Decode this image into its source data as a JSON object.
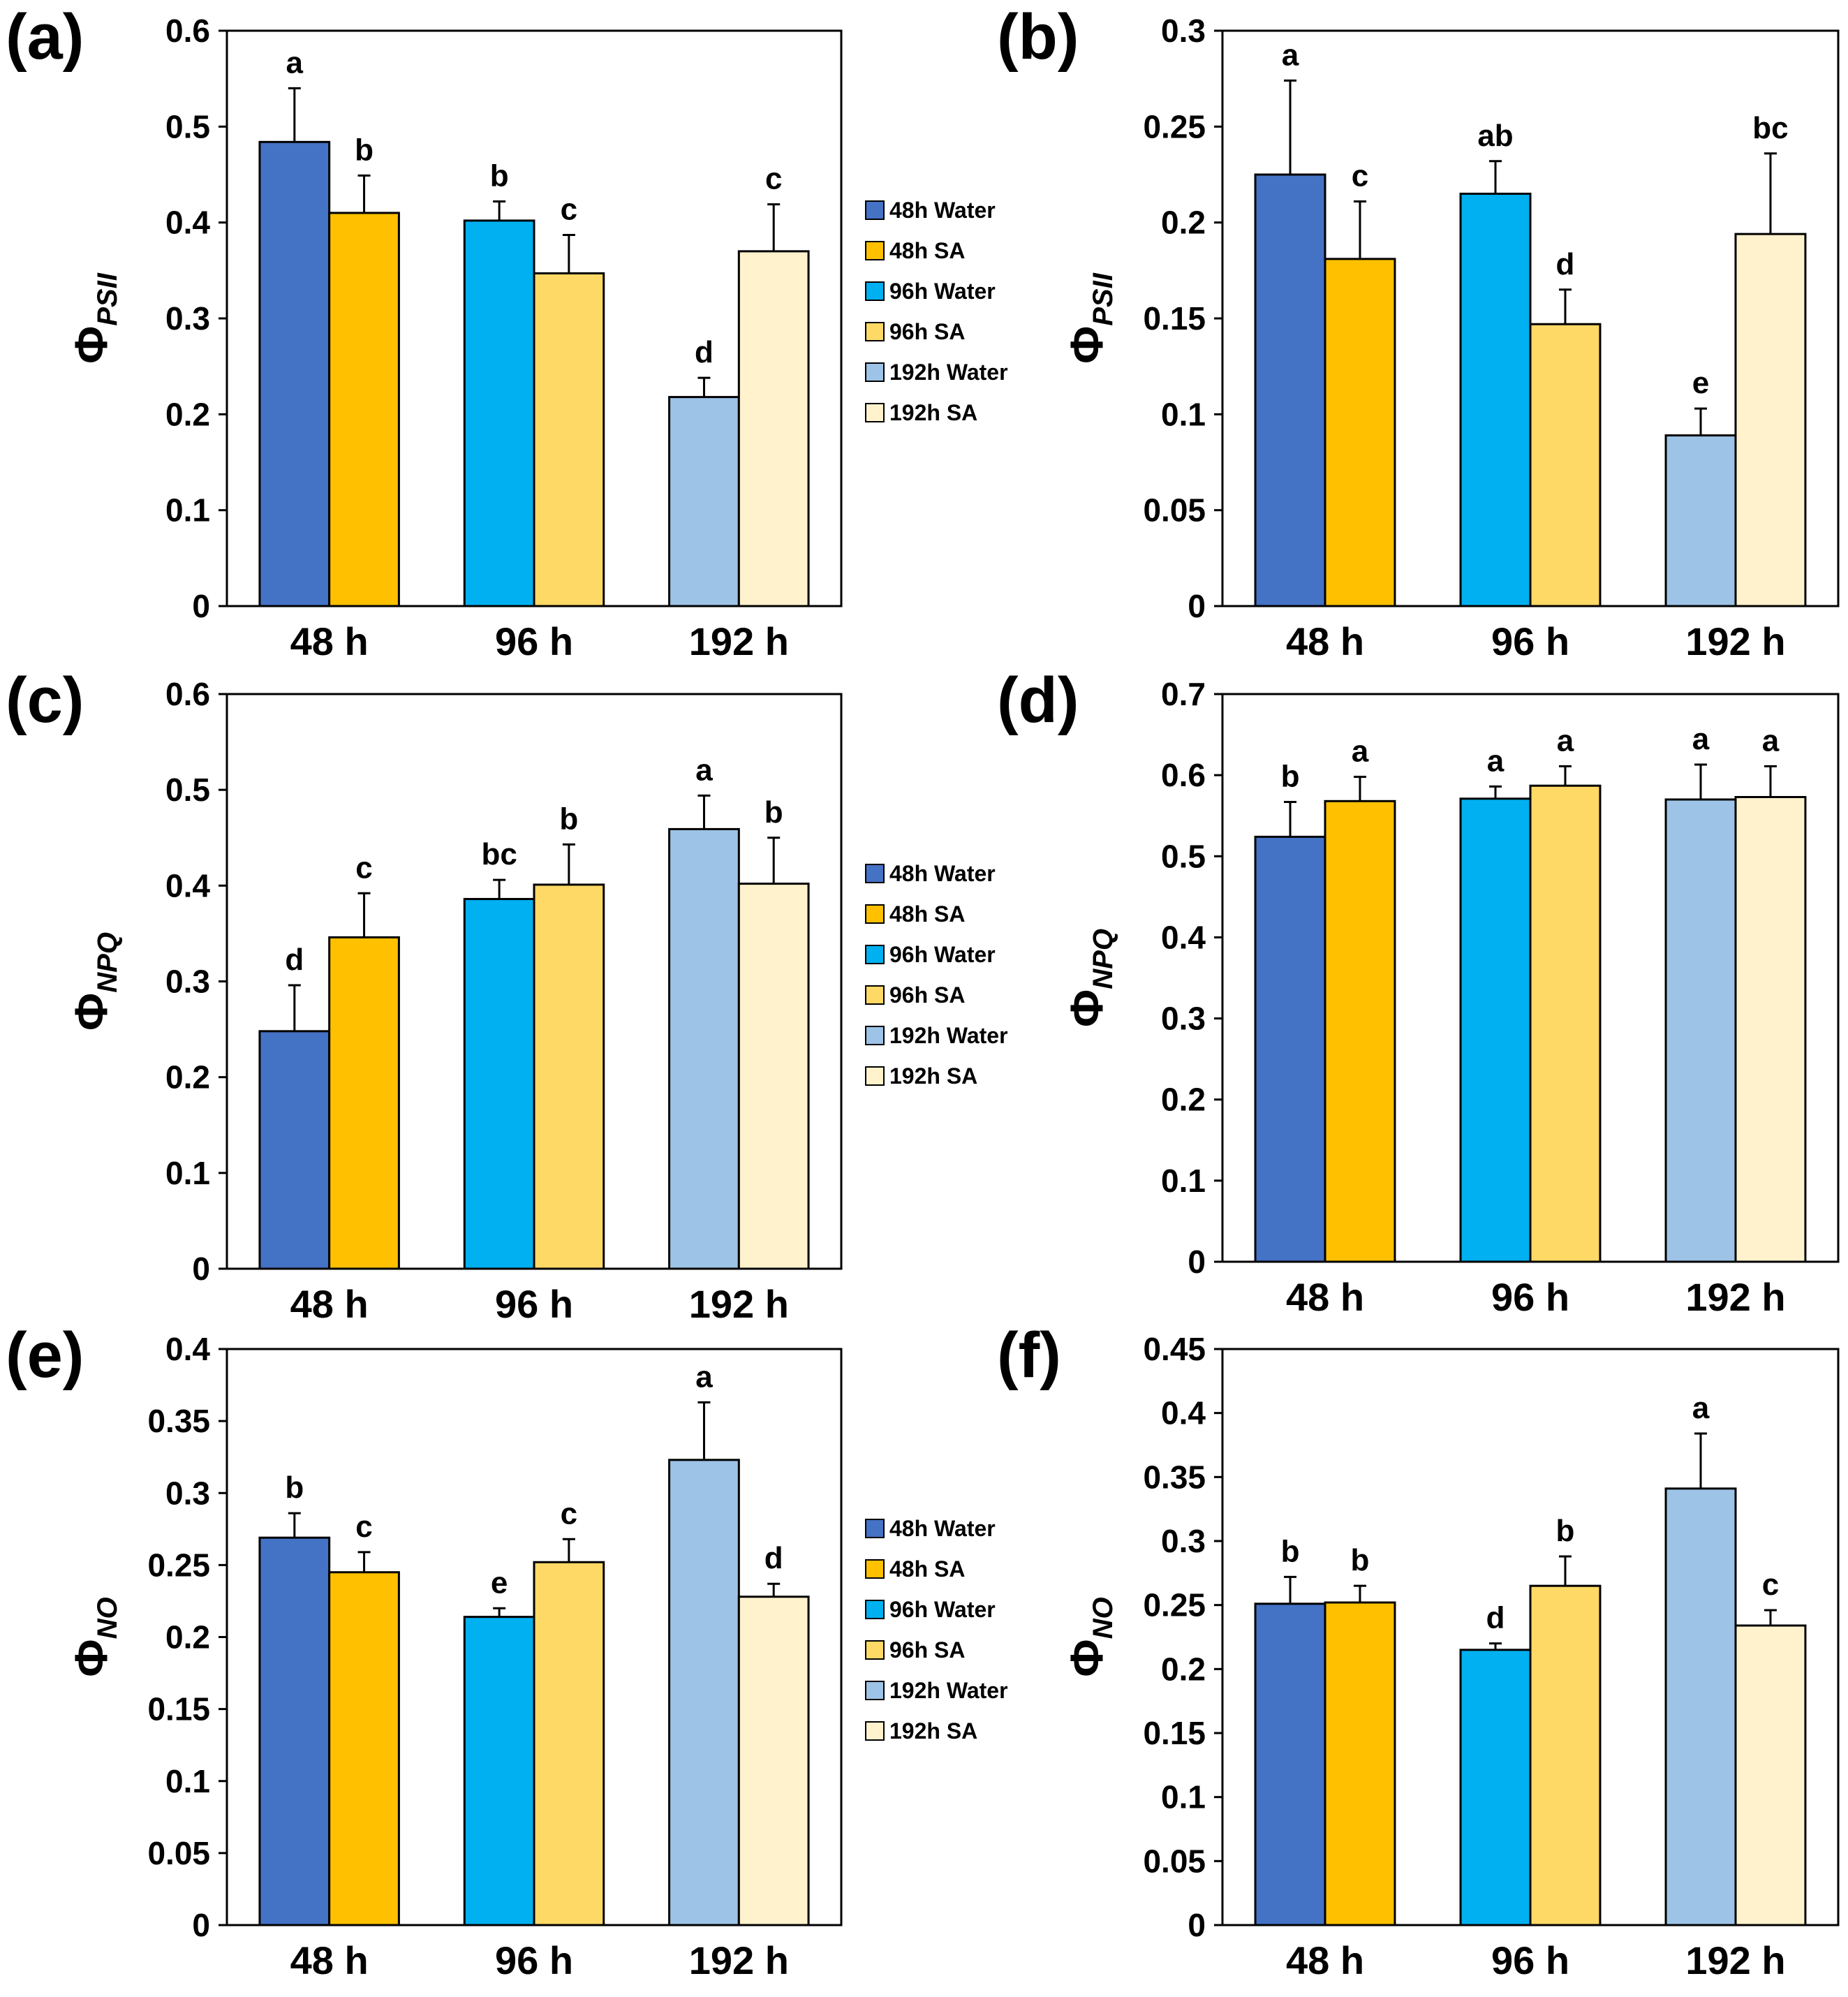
{
  "figure": {
    "group_labels": [
      "48 h",
      "96 h",
      "192 h"
    ],
    "legend_entries": [
      "48h Water",
      "48h SA",
      "96h Water",
      "96h SA",
      "192h Water",
      "192h SA"
    ],
    "series_colors": [
      "#4472C4",
      "#FFC000",
      "#00B0F0",
      "#FFD966",
      "#9DC3E6",
      "#FFF2CC"
    ]
  },
  "chart_data": [
    {
      "panel": "(a)",
      "type": "bar",
      "ylabel_symbol": "Φ",
      "ylabel_subscript": "PSII",
      "ylim": [
        0,
        0.6
      ],
      "yticks": [
        0,
        0.1,
        0.2,
        0.3,
        0.4,
        0.5,
        0.6
      ],
      "ytick_labels": [
        "0",
        "0.1",
        "0.2",
        "0.3",
        "0.4",
        "0.5",
        "0.6"
      ],
      "categories": [
        "48 h",
        "96 h",
        "192 h"
      ],
      "series": [
        {
          "name": "Water",
          "values": [
            0.484,
            0.402,
            0.218
          ],
          "errors": [
            0.056,
            0.02,
            0.02
          ],
          "letters": [
            "a",
            "b",
            "d"
          ]
        },
        {
          "name": "SA",
          "values": [
            0.41,
            0.347,
            0.37
          ],
          "errors": [
            0.039,
            0.04,
            0.049
          ],
          "letters": [
            "b",
            "c",
            "c"
          ]
        }
      ],
      "legend": true
    },
    {
      "panel": "(b)",
      "type": "bar",
      "ylabel_symbol": "Φ",
      "ylabel_subscript": "PSII",
      "ylim": [
        0,
        0.3
      ],
      "yticks": [
        0,
        0.05,
        0.1,
        0.15,
        0.2,
        0.25,
        0.3
      ],
      "ytick_labels": [
        "0",
        "0.05",
        "0.1",
        "0.15",
        "0.2",
        "0.25",
        "0.3"
      ],
      "categories": [
        "48 h",
        "96 h",
        "192 h"
      ],
      "series": [
        {
          "name": "Water",
          "values": [
            0.225,
            0.215,
            0.089
          ],
          "errors": [
            0.049,
            0.017,
            0.014
          ],
          "letters": [
            "a",
            "ab",
            "e"
          ]
        },
        {
          "name": "SA",
          "values": [
            0.181,
            0.147,
            0.194
          ],
          "errors": [
            0.03,
            0.018,
            0.042
          ],
          "letters": [
            "c",
            "d",
            "bc"
          ]
        }
      ],
      "legend": false
    },
    {
      "panel": "(c)",
      "type": "bar",
      "ylabel_symbol": "Φ",
      "ylabel_subscript": "NPQ",
      "ylim": [
        0,
        0.6
      ],
      "yticks": [
        0,
        0.1,
        0.2,
        0.3,
        0.4,
        0.5,
        0.6
      ],
      "ytick_labels": [
        "0",
        "0.1",
        "0.2",
        "0.3",
        "0.4",
        "0.5",
        "0.6"
      ],
      "categories": [
        "48 h",
        "96 h",
        "192 h"
      ],
      "series": [
        {
          "name": "Water",
          "values": [
            0.248,
            0.386,
            0.459
          ],
          "errors": [
            0.048,
            0.02,
            0.035
          ],
          "letters": [
            "d",
            "bc",
            "a"
          ]
        },
        {
          "name": "SA",
          "values": [
            0.346,
            0.401,
            0.402
          ],
          "errors": [
            0.046,
            0.042,
            0.048
          ],
          "letters": [
            "c",
            "b",
            "b"
          ]
        }
      ],
      "legend": true
    },
    {
      "panel": "(d)",
      "type": "bar",
      "ylabel_symbol": "Φ",
      "ylabel_subscript": "NPQ",
      "ylim": [
        0,
        0.7
      ],
      "yticks": [
        0,
        0.1,
        0.2,
        0.3,
        0.4,
        0.5,
        0.6,
        0.7
      ],
      "ytick_labels": [
        "0",
        "0.1",
        "0.2",
        "0.3",
        "0.4",
        "0.5",
        "0.6",
        "0.7"
      ],
      "categories": [
        "48 h",
        "96 h",
        "192 h"
      ],
      "series": [
        {
          "name": "Water",
          "values": [
            0.524,
            0.571,
            0.57
          ],
          "errors": [
            0.043,
            0.015,
            0.043
          ],
          "letters": [
            "b",
            "a",
            "a"
          ]
        },
        {
          "name": "SA",
          "values": [
            0.568,
            0.587,
            0.573
          ],
          "errors": [
            0.03,
            0.024,
            0.038
          ],
          "letters": [
            "a",
            "a",
            "a"
          ]
        }
      ],
      "legend": false
    },
    {
      "panel": "(e)",
      "type": "bar",
      "ylabel_symbol": "Φ",
      "ylabel_subscript": "NO",
      "ylim": [
        0,
        0.4
      ],
      "yticks": [
        0,
        0.05,
        0.1,
        0.15,
        0.2,
        0.25,
        0.3,
        0.35,
        0.4
      ],
      "ytick_labels": [
        "0",
        "0.05",
        "0.1",
        "0.15",
        "0.2",
        "0.25",
        "0.3",
        "0.35",
        "0.4"
      ],
      "categories": [
        "48 h",
        "96 h",
        "192 h"
      ],
      "series": [
        {
          "name": "Water",
          "values": [
            0.269,
            0.214,
            0.323
          ],
          "errors": [
            0.017,
            0.006,
            0.04
          ],
          "letters": [
            "b",
            "e",
            "a"
          ]
        },
        {
          "name": "SA",
          "values": [
            0.245,
            0.252,
            0.228
          ],
          "errors": [
            0.014,
            0.016,
            0.009
          ],
          "letters": [
            "c",
            "c",
            "d"
          ]
        }
      ],
      "legend": true
    },
    {
      "panel": "(f)",
      "type": "bar",
      "ylabel_symbol": "Φ",
      "ylabel_subscript": "NO",
      "ylim": [
        0,
        0.45
      ],
      "yticks": [
        0,
        0.05,
        0.1,
        0.15,
        0.2,
        0.25,
        0.3,
        0.35,
        0.4,
        0.45
      ],
      "ytick_labels": [
        "0",
        "0.05",
        "0.1",
        "0.15",
        "0.2",
        "0.25",
        "0.3",
        "0.35",
        "0.4",
        "0.45"
      ],
      "categories": [
        "48 h",
        "96 h",
        "192 h"
      ],
      "series": [
        {
          "name": "Water",
          "values": [
            0.251,
            0.215,
            0.341
          ],
          "errors": [
            0.021,
            0.005,
            0.043
          ],
          "letters": [
            "b",
            "d",
            "a"
          ]
        },
        {
          "name": "SA",
          "values": [
            0.252,
            0.265,
            0.234
          ],
          "errors": [
            0.013,
            0.023,
            0.012
          ],
          "letters": [
            "b",
            "b",
            "c"
          ]
        }
      ],
      "legend": false
    }
  ]
}
